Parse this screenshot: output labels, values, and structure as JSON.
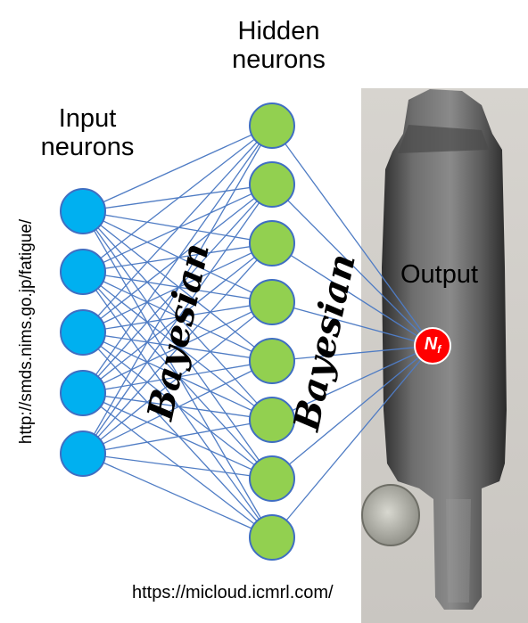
{
  "labels": {
    "input": "Input neurons",
    "hidden": "Hidden neurons",
    "output": "Output",
    "output_node_main": "N",
    "output_node_sub": "f",
    "weights_1": "Bayesian",
    "weights_2": "Bayesian"
  },
  "urls": {
    "left": "http://smds.nims.go.jp/fatigue/",
    "bottom": "https://micloud.icmrl.com/"
  },
  "network": {
    "input_count": 5,
    "hidden_count": 8,
    "output_count": 1
  },
  "colors": {
    "input_node": "#00b0f0",
    "hidden_node": "#92d050",
    "output_node": "#ff0000",
    "node_stroke": "#3f6ec2",
    "edge": "#4f7cc4"
  },
  "image": {
    "subject": "metal fatigue test specimen beside a coin"
  }
}
